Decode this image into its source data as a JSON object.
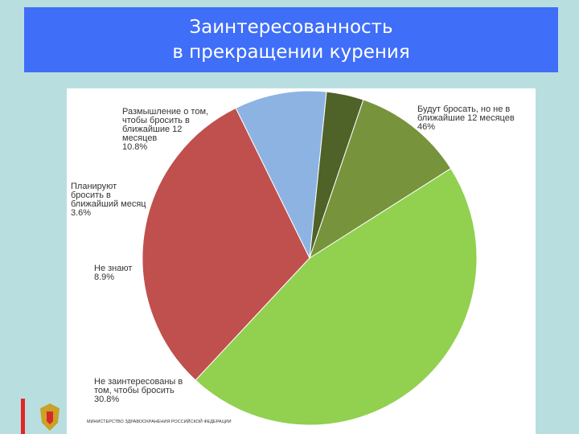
{
  "slide": {
    "title_line1": "Заинтересованность",
    "title_line2": "в прекращении курения",
    "footer": "МИНИСТЕРСТВО ЗДРАВООХРАНЕНИЯ РОССИЙСКОЙ ФЕДЕРАЦИИ"
  },
  "chart_data": {
    "type": "pie",
    "slices": [
      {
        "label": "Будут бросать, но не в ближайшие 12 месяцев\n46%",
        "value": 46,
        "color": "#92d050"
      },
      {
        "label": "Не заинтересованы в том, чтобы бросить\n30.8%",
        "value": 30.8,
        "color": "#c0504d"
      },
      {
        "label": "Не знают\n8.9%",
        "value": 8.9,
        "color": "#8db3e2"
      },
      {
        "label": "Планируют бросить в ближайший месяц\n3.6%",
        "value": 3.6,
        "color": "#4f6228"
      },
      {
        "label": "Размышление о том, чтобы бросить в ближайшие 12 месяцев\n10.8%",
        "value": 10.8,
        "color": "#77933c"
      }
    ]
  }
}
